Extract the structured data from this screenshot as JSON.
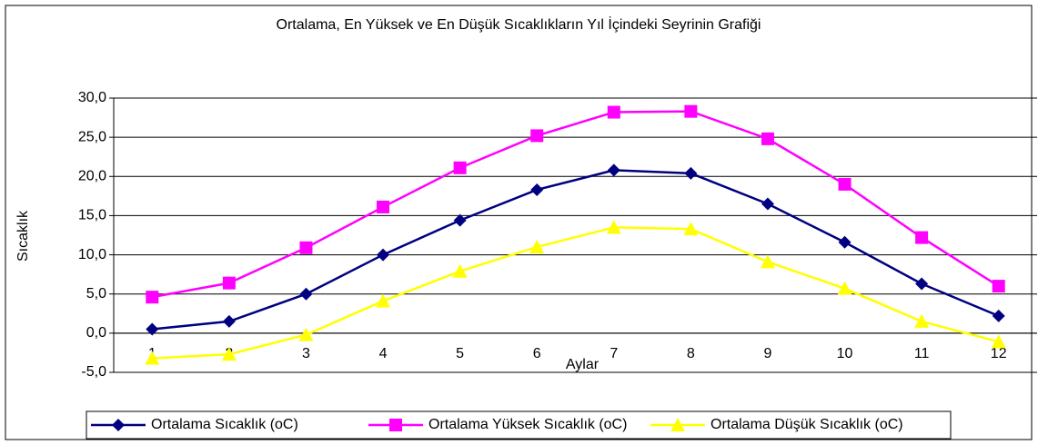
{
  "chart_data": {
    "type": "line",
    "title": "Ortalama, En Yüksek ve En Düşük Sıcaklıkların Yıl İçindeki Seyrinin Grafiği",
    "x_label": "Aylar",
    "y_label": "Sıcaklık",
    "categories": [
      "1",
      "2",
      "3",
      "4",
      "5",
      "6",
      "7",
      "8",
      "9",
      "10",
      "11",
      "12"
    ],
    "series": [
      {
        "name": "Ortalama Sıcaklık (oC)",
        "color": "#000080",
        "marker": "diamond",
        "values": [
          0.5,
          1.5,
          5.0,
          10.0,
          14.4,
          18.3,
          20.8,
          20.4,
          16.5,
          11.6,
          6.3,
          2.2
        ]
      },
      {
        "name": "Ortalama Yüksek Sıcaklık (oC)",
        "color": "#ff00ff",
        "marker": "square",
        "values": [
          4.6,
          6.4,
          10.9,
          16.1,
          21.1,
          25.2,
          28.2,
          28.3,
          24.8,
          19.0,
          12.2,
          6.0
        ]
      },
      {
        "name": "Ortalama Düşük Sıcaklık (oC)",
        "color": "#ffff00",
        "marker": "triangle",
        "values": [
          -3.2,
          -2.7,
          -0.2,
          4.1,
          7.9,
          11.0,
          13.5,
          13.3,
          9.1,
          5.7,
          1.5,
          -1.1
        ]
      }
    ],
    "ylim": [
      -5,
      30
    ],
    "yticks": [
      {
        "value": -5,
        "label": "-5,0"
      },
      {
        "value": 0,
        "label": "0,0"
      },
      {
        "value": 5,
        "label": "5,0"
      },
      {
        "value": 10,
        "label": "10,0"
      },
      {
        "value": 15,
        "label": "15,0"
      },
      {
        "value": 20,
        "label": "20,0"
      },
      {
        "value": 25,
        "label": "25,0"
      },
      {
        "value": 30,
        "label": "30,0"
      }
    ],
    "grid": true,
    "legend": "bottom"
  }
}
